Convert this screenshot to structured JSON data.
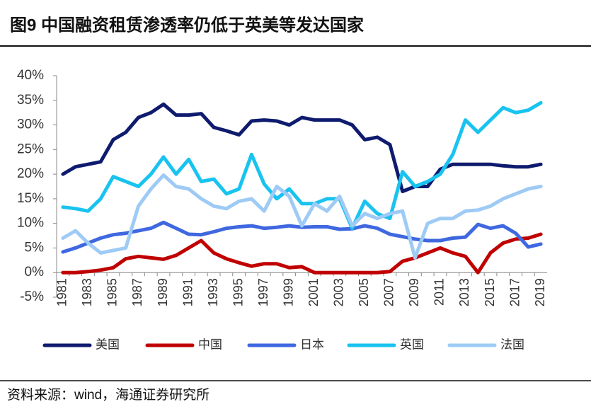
{
  "chart_data": {
    "type": "line",
    "title": "图9  中国融资租赁渗透率仍低于英美等发达国家",
    "source": "资料来源：wind，海通证券研究所",
    "categories": [
      "1981",
      null,
      "1983",
      null,
      "1985",
      null,
      "1987",
      null,
      "1989",
      null,
      "1991",
      null,
      "1993",
      null,
      "1995",
      null,
      "1997",
      null,
      "1999",
      null,
      "2001",
      null,
      "2003",
      null,
      "2005",
      null,
      "2007",
      null,
      "2009",
      null,
      "2011",
      null,
      "2013",
      null,
      "2015",
      null,
      "2017",
      null,
      "2019"
    ],
    "series": [
      {
        "name": "美国",
        "color": "#0f1b6e",
        "values": [
          20,
          21.5,
          22,
          22.5,
          27,
          28.5,
          31.5,
          32.5,
          34.2,
          32,
          32,
          32.3,
          29.5,
          28.8,
          28,
          30.8,
          31,
          30.8,
          30,
          31.5,
          31,
          31,
          31,
          30,
          27,
          27.5,
          26,
          16.5,
          17.5,
          17.5,
          21,
          22,
          22,
          22,
          22,
          21.7,
          21.5,
          21.5,
          22
        ]
      },
      {
        "name": "中国",
        "color": "#c00000",
        "values": [
          0,
          0,
          0.2,
          0.5,
          1,
          2.8,
          3.3,
          3,
          2.7,
          3.5,
          5,
          6.5,
          4,
          2.8,
          2,
          1.3,
          1.8,
          1.8,
          1,
          1.2,
          0,
          0,
          0,
          0,
          0,
          0,
          0.2,
          2.3,
          3,
          4,
          5,
          4,
          3.3,
          0,
          4,
          6,
          6.8,
          7,
          7.8
        ]
      },
      {
        "name": "日本",
        "color": "#3f68e0",
        "values": [
          4.2,
          5,
          6,
          7,
          7.7,
          8,
          8.5,
          9,
          10.2,
          9,
          7.8,
          7.7,
          8.3,
          9,
          9.3,
          9.5,
          9,
          9.2,
          9.5,
          9.2,
          9.3,
          9.3,
          8.8,
          8.9,
          9.5,
          9,
          7.8,
          7.3,
          6.8,
          6.5,
          6.5,
          7,
          7.2,
          9.8,
          9,
          9.5,
          8,
          5.2,
          5.8
        ]
      },
      {
        "name": "英国",
        "color": "#19c3f0",
        "values": [
          13.3,
          13,
          12.5,
          15,
          19.5,
          18.5,
          17.5,
          20,
          23.5,
          20,
          23,
          18.5,
          19,
          16,
          17,
          24,
          18,
          15,
          17,
          14,
          14,
          15,
          15,
          9,
          14.5,
          12,
          11,
          20.5,
          17.5,
          18.5,
          20,
          24,
          31,
          28.5,
          31,
          33.5,
          32.5,
          33,
          34.5
        ]
      },
      {
        "name": "法国",
        "color": "#9ecbf5",
        "values": [
          7,
          8.5,
          6,
          4,
          4.5,
          5,
          13.5,
          17,
          19.8,
          17.5,
          17,
          15,
          13.5,
          13,
          14.5,
          15,
          12.5,
          17.5,
          15.5,
          9.5,
          14,
          12.5,
          15.5,
          9.5,
          12,
          11,
          12,
          12.5,
          3,
          10,
          11,
          11,
          12.5,
          12.7,
          13.5,
          15,
          16,
          17,
          17.5
        ]
      }
    ],
    "ylim": [
      -5,
      40
    ],
    "yticks": [
      {
        "value": -5,
        "label": "-5%"
      },
      {
        "value": 0,
        "label": "0%"
      },
      {
        "value": 5,
        "label": "5%"
      },
      {
        "value": 10,
        "label": "10%"
      },
      {
        "value": 15,
        "label": "15%"
      },
      {
        "value": 20,
        "label": "20%"
      },
      {
        "value": 25,
        "label": "25%"
      },
      {
        "value": 30,
        "label": "30%"
      },
      {
        "value": 35,
        "label": "35%"
      },
      {
        "value": 40,
        "label": "40%"
      }
    ],
    "grid": false
  }
}
